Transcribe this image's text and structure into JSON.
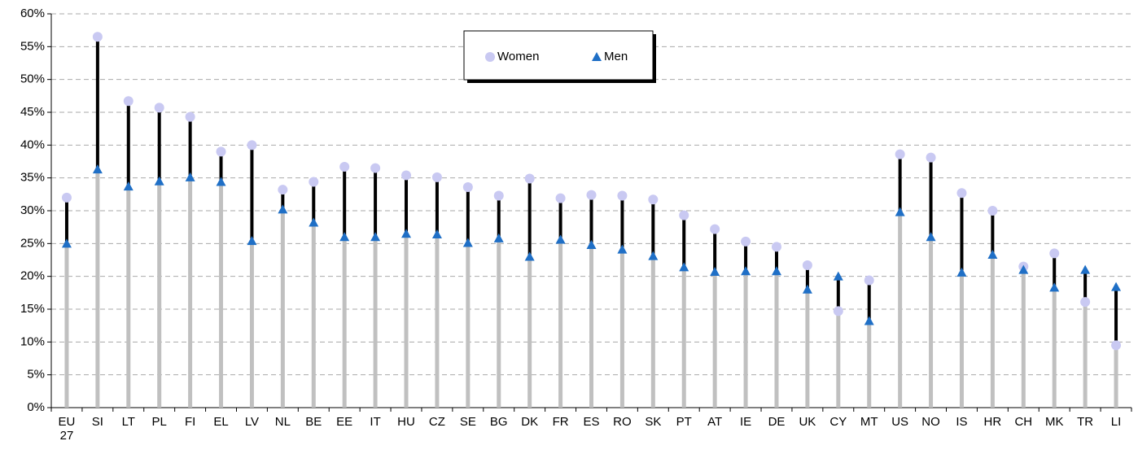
{
  "chart_data": {
    "type": "range-dot",
    "categories": [
      "EU 27",
      "SI",
      "LT",
      "PL",
      "FI",
      "EL",
      "LV",
      "NL",
      "BE",
      "EE",
      "IT",
      "HU",
      "CZ",
      "SE",
      "BG",
      "DK",
      "FR",
      "ES",
      "RO",
      "SK",
      "PT",
      "AT",
      "IE",
      "DE",
      "UK",
      "CY",
      "MT",
      "US",
      "NO",
      "IS",
      "HR",
      "CH",
      "MK",
      "TR",
      "LI"
    ],
    "series": [
      {
        "name": "Women",
        "color": "#c9c9f2",
        "values": [
          32,
          56.5,
          46.7,
          45.7,
          44.3,
          39,
          40,
          33.2,
          34.4,
          36.7,
          36.5,
          35.4,
          35.1,
          33.6,
          32.3,
          34.9,
          31.9,
          32.4,
          32.3,
          31.7,
          29.3,
          27.2,
          25.3,
          24.5,
          21.7,
          14.7,
          19.4,
          38.6,
          38.1,
          32.7,
          30,
          21.5,
          23.5,
          16.1,
          9.5
        ]
      },
      {
        "name": "Men",
        "color": "#1f6fc6",
        "values": [
          25,
          36.3,
          33.7,
          34.5,
          35.1,
          34.4,
          25.4,
          30.2,
          28.2,
          26,
          26,
          26.5,
          26.4,
          25.1,
          25.8,
          23,
          25.6,
          24.8,
          24.1,
          23.1,
          21.4,
          20.7,
          20.8,
          20.8,
          18,
          20,
          13.2,
          29.8,
          26,
          20.6,
          23.3,
          21,
          18.3,
          21,
          18.4
        ]
      }
    ],
    "ylim": [
      0,
      60
    ],
    "yticks": [
      {
        "value": 0,
        "label": "0%"
      },
      {
        "value": 5,
        "label": "5%"
      },
      {
        "value": 10,
        "label": "10%"
      },
      {
        "value": 15,
        "label": "15%"
      },
      {
        "value": 20,
        "label": "20%"
      },
      {
        "value": 25,
        "label": "25%"
      },
      {
        "value": 30,
        "label": "30%"
      },
      {
        "value": 35,
        "label": "35%"
      },
      {
        "value": 40,
        "label": "40%"
      },
      {
        "value": 45,
        "label": "45%"
      },
      {
        "value": 50,
        "label": "50%"
      },
      {
        "value": 55,
        "label": "55%"
      },
      {
        "value": 60,
        "label": "60%"
      }
    ],
    "grid": true,
    "legend": "top"
  }
}
